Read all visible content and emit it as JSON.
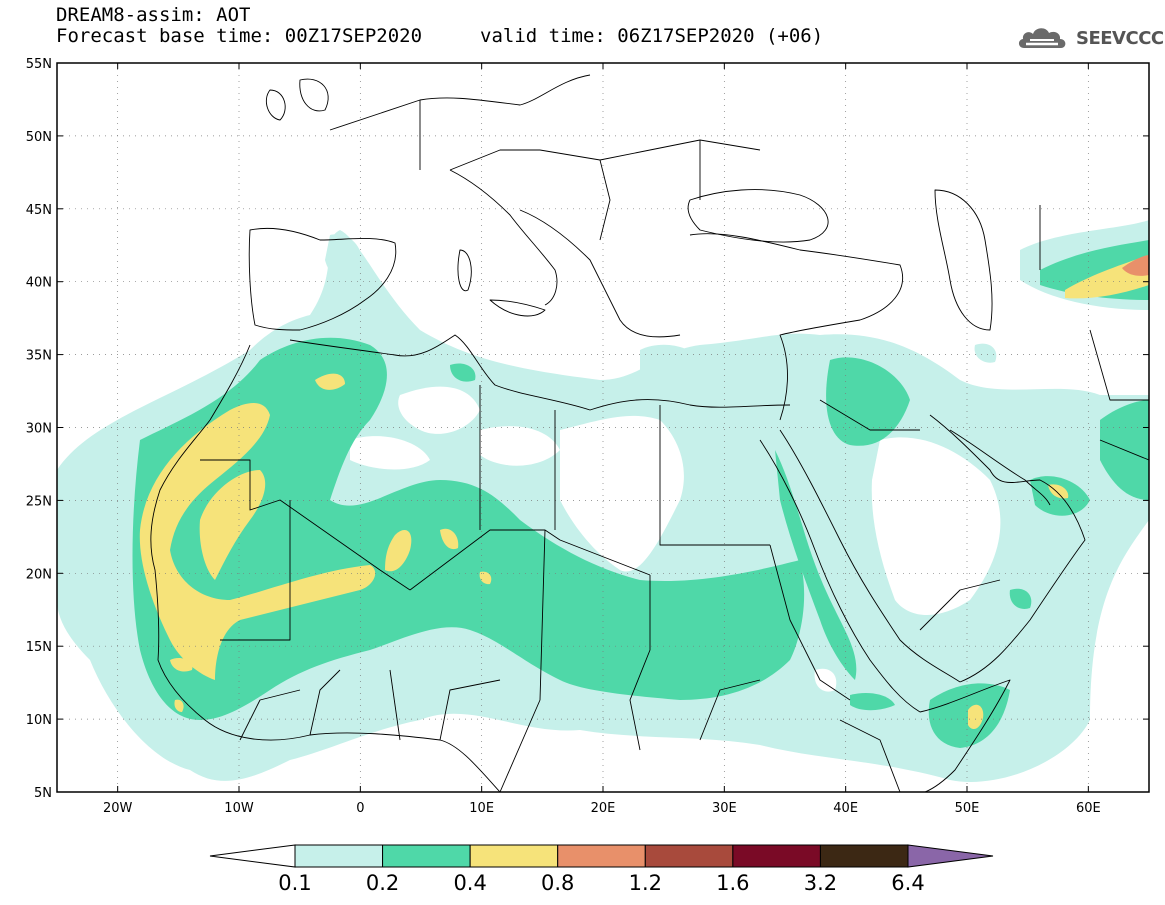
{
  "header": {
    "line1": "DREAM8-assim: AOT",
    "line2": "Forecast base time: 00Z17SEP2020",
    "valid": "valid time: 06Z17SEP2020 (+06)",
    "logo": "SEEVCCC"
  },
  "map": {
    "lon_range": [
      -25,
      65
    ],
    "lat_range": [
      5,
      55
    ],
    "lat_ticks": [
      {
        "value": 55,
        "label": "55N"
      },
      {
        "value": 50,
        "label": "50N"
      },
      {
        "value": 45,
        "label": "45N"
      },
      {
        "value": 40,
        "label": "40N"
      },
      {
        "value": 35,
        "label": "35N"
      },
      {
        "value": 30,
        "label": "30N"
      },
      {
        "value": 25,
        "label": "25N"
      },
      {
        "value": 20,
        "label": "20N"
      },
      {
        "value": 15,
        "label": "15N"
      },
      {
        "value": 10,
        "label": "10N"
      },
      {
        "value": 5,
        "label": "5N"
      }
    ],
    "lon_ticks": [
      {
        "value": -20,
        "label": "20W"
      },
      {
        "value": -10,
        "label": "10W"
      },
      {
        "value": 0,
        "label": "0"
      },
      {
        "value": 10,
        "label": "10E"
      },
      {
        "value": 20,
        "label": "20E"
      },
      {
        "value": 30,
        "label": "30E"
      },
      {
        "value": 40,
        "label": "40E"
      },
      {
        "value": 50,
        "label": "50E"
      },
      {
        "value": 60,
        "label": "60E"
      }
    ],
    "grid": true
  },
  "colorbar": {
    "levels": [
      "0.1",
      "0.2",
      "0.4",
      "0.8",
      "1.2",
      "1.6",
      "3.2",
      "6.4"
    ],
    "colors": [
      "#ffffff",
      "#c6f0ea",
      "#4fd8a8",
      "#f6e37a",
      "#e8906a",
      "#a84a3c",
      "#7a0a26",
      "#3c2814",
      "#8a66a8"
    ]
  }
}
